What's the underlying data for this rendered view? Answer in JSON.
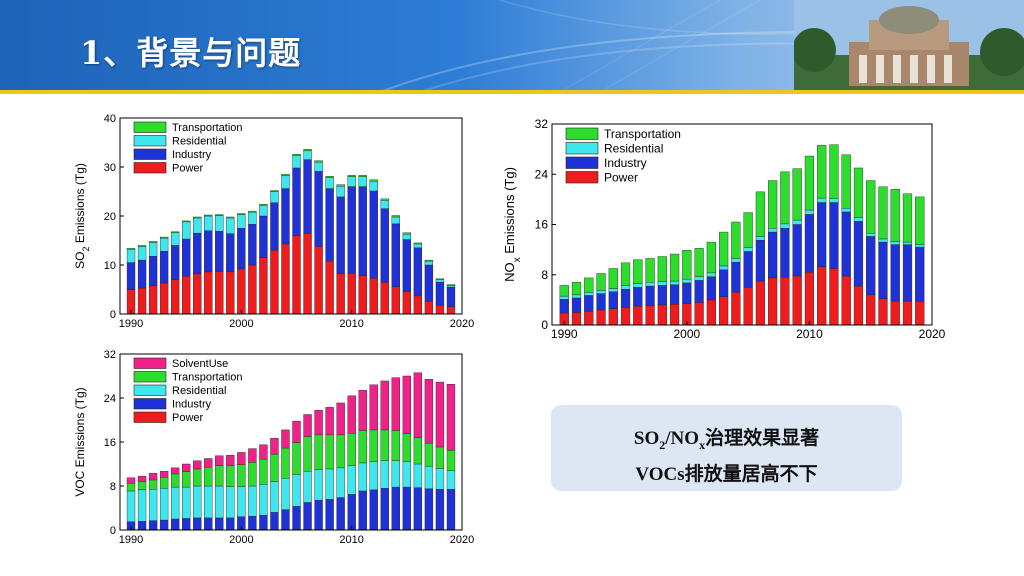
{
  "slide": {
    "title": "1、背景与问题"
  },
  "colors": {
    "power": "#ee1c1c",
    "industry": "#1f32d6",
    "residential": "#3ee6ee",
    "transportation": "#2edc2e",
    "solvent": "#ee2288"
  },
  "callout": {
    "line1_so": "SO",
    "line1_so_sub": "2",
    "line1_no": "/NO",
    "line1_no_sub": "x",
    "line1_rest": "治理效果显著",
    "line2": "VOCs排放量居高不下"
  },
  "chart_data": [
    {
      "id": "so2",
      "type": "bar",
      "stacked": true,
      "title": "",
      "ylabel_prefix": "SO",
      "ylabel_sub": "2",
      "ylabel_suffix": " Emissions (Tg)",
      "xlim": [
        1989,
        2020
      ],
      "ylim": [
        0,
        40
      ],
      "yticks": [
        0,
        10,
        20,
        30,
        40
      ],
      "xticks": [
        1990,
        2000,
        2010,
        2020
      ],
      "legend": [
        "Transportation",
        "Residential",
        "Industry",
        "Power"
      ],
      "x": [
        1990,
        1991,
        1992,
        1993,
        1994,
        1995,
        1996,
        1997,
        1998,
        1999,
        2000,
        2001,
        2002,
        2003,
        2004,
        2005,
        2006,
        2007,
        2008,
        2009,
        2010,
        2011,
        2012,
        2013,
        2014,
        2015,
        2016,
        2017,
        2018,
        2019
      ],
      "series": [
        {
          "name": "Power",
          "key": "power",
          "values": [
            5,
            5.3,
            5.8,
            6.3,
            7,
            7.7,
            8.2,
            8.6,
            8.7,
            8.6,
            9.2,
            10,
            11.5,
            13,
            14.3,
            16,
            16.5,
            13.8,
            10.8,
            8.2,
            8.3,
            7.8,
            7.3,
            6.5,
            5.6,
            4.6,
            3.7,
            2.6,
            1.8,
            1.5
          ]
        },
        {
          "name": "Industry",
          "key": "industry",
          "values": [
            5.5,
            5.7,
            6,
            6.5,
            7,
            7.6,
            8.3,
            8.4,
            8.2,
            7.8,
            8.3,
            8.3,
            8.5,
            9.7,
            11.3,
            13.8,
            15,
            15.3,
            14.8,
            15.7,
            17.7,
            18.2,
            17.8,
            15,
            12.8,
            10.6,
            9.8,
            7.4,
            4.7,
            4
          ]
        },
        {
          "name": "Residential",
          "key": "residential",
          "values": [
            2.7,
            2.8,
            2.8,
            2.7,
            2.6,
            3.5,
            3.1,
            3.0,
            3.2,
            3.2,
            2.8,
            2.5,
            2.2,
            2.3,
            2.6,
            2.5,
            1.8,
            1.9,
            2.2,
            2.2,
            2.0,
            2.0,
            2.0,
            1.7,
            1.4,
            1.1,
            0.8,
            0.8,
            0.5,
            0.3
          ]
        },
        {
          "name": "Transportation",
          "key": "transportation",
          "values": [
            0.2,
            0.2,
            0.2,
            0.2,
            0.2,
            0.2,
            0.2,
            0.2,
            0.2,
            0.2,
            0.2,
            0.2,
            0.2,
            0.2,
            0.3,
            0.3,
            0.3,
            0.3,
            0.3,
            0.3,
            0.3,
            0.3,
            0.3,
            0.3,
            0.3,
            0.3,
            0.2,
            0.2,
            0.2,
            0.2
          ]
        }
      ]
    },
    {
      "id": "nox",
      "type": "bar",
      "stacked": true,
      "title": "",
      "ylabel_prefix": "NO",
      "ylabel_sub": "x",
      "ylabel_suffix": " Emissions (Tg)",
      "xlim": [
        1989,
        2020
      ],
      "ylim": [
        0,
        32
      ],
      "yticks": [
        0,
        8,
        16,
        24,
        32
      ],
      "xticks": [
        1990,
        2000,
        2010,
        2020
      ],
      "legend": [
        "Transportation",
        "Residential",
        "Industry",
        "Power"
      ],
      "x": [
        1990,
        1991,
        1992,
        1993,
        1994,
        1995,
        1996,
        1997,
        1998,
        1999,
        2000,
        2001,
        2002,
        2003,
        2004,
        2005,
        2006,
        2007,
        2008,
        2009,
        2010,
        2011,
        2012,
        2013,
        2014,
        2015,
        2016,
        2017,
        2018,
        2019
      ],
      "series": [
        {
          "name": "Power",
          "key": "power",
          "values": [
            1.9,
            2,
            2.2,
            2.4,
            2.6,
            2.8,
            3,
            3.1,
            3.2,
            3.3,
            3.4,
            3.6,
            4,
            4.5,
            5.2,
            6,
            7,
            7.5,
            7.6,
            7.8,
            8.4,
            9.3,
            9,
            7.8,
            6.2,
            4.8,
            4.2,
            3.8,
            3.8,
            3.8
          ]
        },
        {
          "name": "Industry",
          "key": "industry",
          "values": [
            2.2,
            2.3,
            2.5,
            2.6,
            2.7,
            2.9,
            3,
            3.1,
            3.1,
            3.1,
            3.3,
            3.5,
            3.7,
            4.3,
            4.8,
            5.7,
            6.5,
            7.3,
            7.8,
            8.2,
            9.2,
            10.2,
            10.5,
            10.2,
            10.3,
            9.3,
            9,
            9,
            9,
            8.6
          ]
        },
        {
          "name": "Residential",
          "key": "residential",
          "values": [
            0.5,
            0.5,
            0.5,
            0.5,
            0.5,
            0.6,
            0.6,
            0.6,
            0.6,
            0.6,
            0.6,
            0.6,
            0.6,
            0.6,
            0.6,
            0.6,
            0.6,
            0.6,
            0.7,
            0.7,
            0.7,
            0.7,
            0.6,
            0.6,
            0.6,
            0.5,
            0.5,
            0.5,
            0.4,
            0.4
          ]
        },
        {
          "name": "Transportation",
          "key": "transportation",
          "values": [
            1.7,
            2,
            2.3,
            2.7,
            3.2,
            3.6,
            3.8,
            3.8,
            4,
            4.3,
            4.6,
            4.5,
            4.9,
            5.4,
            5.8,
            5.6,
            7.1,
            7.6,
            8.3,
            8.2,
            8.6,
            8.4,
            8.6,
            8.5,
            7.9,
            8.4,
            8.3,
            8.3,
            7.7,
            7.6
          ]
        }
      ]
    },
    {
      "id": "voc",
      "type": "bar",
      "stacked": true,
      "title": "",
      "ylabel_prefix": "VOC Emissions (Tg)",
      "ylabel_sub": "",
      "ylabel_suffix": "",
      "xlim": [
        1989,
        2020
      ],
      "ylim": [
        0,
        32
      ],
      "yticks": [
        0,
        8,
        16,
        24,
        32
      ],
      "xticks": [
        1990,
        2000,
        2010,
        2020
      ],
      "legend": [
        "SolventUse",
        "Transportation",
        "Residential",
        "Industry",
        "Power"
      ],
      "x": [
        1990,
        1991,
        1992,
        1993,
        1994,
        1995,
        1996,
        1997,
        1998,
        1999,
        2000,
        2001,
        2002,
        2003,
        2004,
        2005,
        2006,
        2007,
        2008,
        2009,
        2010,
        2011,
        2012,
        2013,
        2014,
        2015,
        2016,
        2017,
        2018,
        2019
      ],
      "series": [
        {
          "name": "Power",
          "key": "power",
          "values": [
            0.1,
            0.1,
            0.1,
            0.1,
            0.1,
            0.1,
            0.1,
            0.1,
            0.1,
            0.1,
            0.1,
            0.1,
            0.1,
            0.1,
            0.1,
            0.1,
            0.1,
            0.1,
            0.1,
            0.1,
            0.1,
            0.1,
            0.1,
            0.1,
            0.1,
            0.1,
            0.1,
            0.1,
            0.1,
            0.1
          ]
        },
        {
          "name": "Industry",
          "key": "industry",
          "values": [
            1.4,
            1.5,
            1.6,
            1.7,
            1.9,
            2,
            2.1,
            2.1,
            2.1,
            2.1,
            2.3,
            2.4,
            2.6,
            3.1,
            3.6,
            4.2,
            4.9,
            5.3,
            5.5,
            5.8,
            6.4,
            7,
            7.2,
            7.5,
            7.7,
            7.7,
            7.6,
            7.4,
            7.3,
            7.3
          ]
        },
        {
          "name": "Residential",
          "key": "residential",
          "values": [
            5.6,
            5.7,
            5.7,
            5.8,
            5.8,
            5.7,
            5.8,
            5.8,
            5.8,
            5.7,
            5.5,
            5.5,
            5.6,
            5.6,
            5.7,
            5.8,
            5.7,
            5.6,
            5.5,
            5.4,
            5.2,
            5.1,
            5.1,
            5,
            4.8,
            4.6,
            4.3,
            4.1,
            3.8,
            3.4
          ]
        },
        {
          "name": "Transportation",
          "key": "transportation",
          "values": [
            1.4,
            1.5,
            1.7,
            2,
            2.4,
            2.8,
            3.1,
            3.4,
            3.7,
            3.8,
            4,
            4.3,
            4.6,
            5,
            5.5,
            5.8,
            6.3,
            6.3,
            6.2,
            6,
            5.9,
            5.9,
            5.8,
            5.6,
            5.5,
            5.1,
            4.8,
            4.2,
            3.9,
            3.7
          ]
        },
        {
          "name": "SolventUse",
          "key": "solvent",
          "values": [
            1,
            1,
            1.2,
            1.1,
            1.1,
            1.4,
            1.5,
            1.6,
            1.8,
            1.9,
            2.2,
            2.5,
            2.6,
            2.9,
            3.3,
            3.9,
            4,
            4.5,
            5,
            5.8,
            6.8,
            7.3,
            8.2,
            8.9,
            9.6,
            10.5,
            11.8,
            11.6,
            11.8,
            12
          ]
        }
      ]
    }
  ]
}
